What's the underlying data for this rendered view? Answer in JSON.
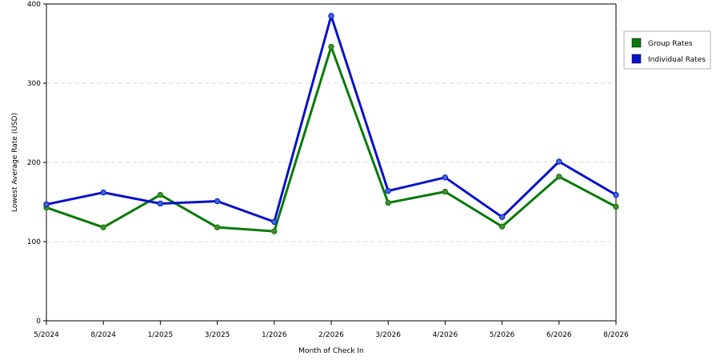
{
  "chart_data": {
    "type": "line",
    "title": "",
    "xlabel": "Month of Check In",
    "ylabel": "Lowest Average Rate (USD)",
    "categories": [
      "5/2024",
      "8/2024",
      "1/2025",
      "3/2025",
      "1/2026",
      "2/2026",
      "3/2026",
      "4/2026",
      "5/2026",
      "6/2026",
      "8/2026"
    ],
    "ylim": [
      0,
      400
    ],
    "yticks": [
      0,
      100,
      200,
      300,
      400
    ],
    "grid": "horizontal dashed",
    "legend_position": "right",
    "series": [
      {
        "name": "Group Rates",
        "color": "#0a7a0a",
        "marker_color": "#4a8a2a",
        "values": [
          143,
          118,
          159,
          118,
          113,
          346,
          149,
          163,
          119,
          182,
          144
        ]
      },
      {
        "name": "Individual Rates",
        "color": "#0a12c8",
        "marker_color": "#3a6ad8",
        "values": [
          147,
          162,
          148,
          151,
          125,
          385,
          164,
          181,
          131,
          201,
          159
        ]
      }
    ]
  }
}
